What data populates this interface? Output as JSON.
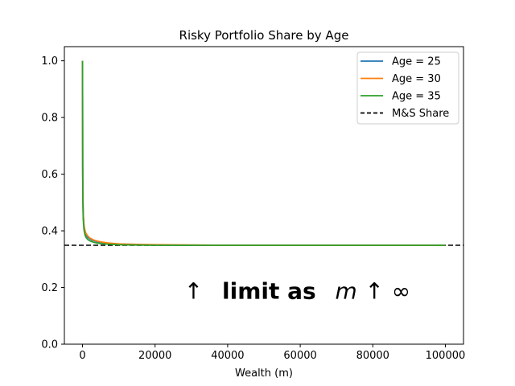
{
  "chart_data": {
    "type": "line",
    "title": "Risky Portfolio Share by Age",
    "xlabel": "Wealth (m)",
    "ylabel": "",
    "xlim": [
      -5000,
      105000
    ],
    "ylim": [
      0.0,
      1.05
    ],
    "x_ticks": [
      0,
      20000,
      40000,
      60000,
      80000,
      100000
    ],
    "y_ticks": [
      0.0,
      0.2,
      0.4,
      0.6,
      0.8,
      1.0
    ],
    "x_tick_labels": [
      "0",
      "20000",
      "40000",
      "60000",
      "80000",
      "100000"
    ],
    "y_tick_labels": [
      "0.0",
      "0.2",
      "0.4",
      "0.6",
      "0.8",
      "1.0"
    ],
    "grid": false,
    "legend_position": "top-right",
    "series": [
      {
        "name": "Age = 25",
        "color": "#1f77b4",
        "x": [
          0,
          50,
          100,
          200,
          400,
          700,
          1000,
          1500,
          2000,
          3000,
          4000,
          5000,
          7000,
          10000,
          15000,
          20000,
          30000,
          40000,
          60000,
          80000,
          100000
        ],
        "y": [
          1.0,
          0.62,
          0.52,
          0.455,
          0.415,
          0.395,
          0.385,
          0.377,
          0.372,
          0.366,
          0.362,
          0.359,
          0.356,
          0.353,
          0.351,
          0.35,
          0.349,
          0.349,
          0.349,
          0.349,
          0.349
        ]
      },
      {
        "name": "Age = 30",
        "color": "#ff7f0e",
        "x": [
          0,
          50,
          100,
          200,
          400,
          700,
          1000,
          1500,
          2000,
          3000,
          4000,
          5000,
          7000,
          10000,
          15000,
          20000,
          30000,
          40000,
          60000,
          80000,
          100000
        ],
        "y": [
          1.0,
          0.63,
          0.53,
          0.46,
          0.42,
          0.4,
          0.39,
          0.381,
          0.375,
          0.368,
          0.364,
          0.361,
          0.357,
          0.354,
          0.352,
          0.351,
          0.35,
          0.349,
          0.349,
          0.349,
          0.349
        ]
      },
      {
        "name": "Age = 35",
        "color": "#2ca02c",
        "x": [
          0,
          50,
          100,
          200,
          400,
          700,
          1000,
          1500,
          2000,
          3000,
          4000,
          5000,
          7000,
          10000,
          15000,
          20000,
          30000,
          40000,
          60000,
          80000,
          100000
        ],
        "y": [
          1.0,
          0.6,
          0.5,
          0.44,
          0.405,
          0.385,
          0.376,
          0.369,
          0.365,
          0.36,
          0.357,
          0.355,
          0.353,
          0.351,
          0.35,
          0.349,
          0.349,
          0.349,
          0.349,
          0.349,
          0.349
        ]
      }
    ],
    "reference_line": {
      "name": "M&S Share",
      "value": 0.349,
      "color": "#000000",
      "style": "dashed"
    },
    "annotation": {
      "arrow1": "↑",
      "text": "limit as",
      "var": "m",
      "arrow2": "↑",
      "inf": "∞",
      "x": 28000,
      "y": 0.16
    }
  }
}
